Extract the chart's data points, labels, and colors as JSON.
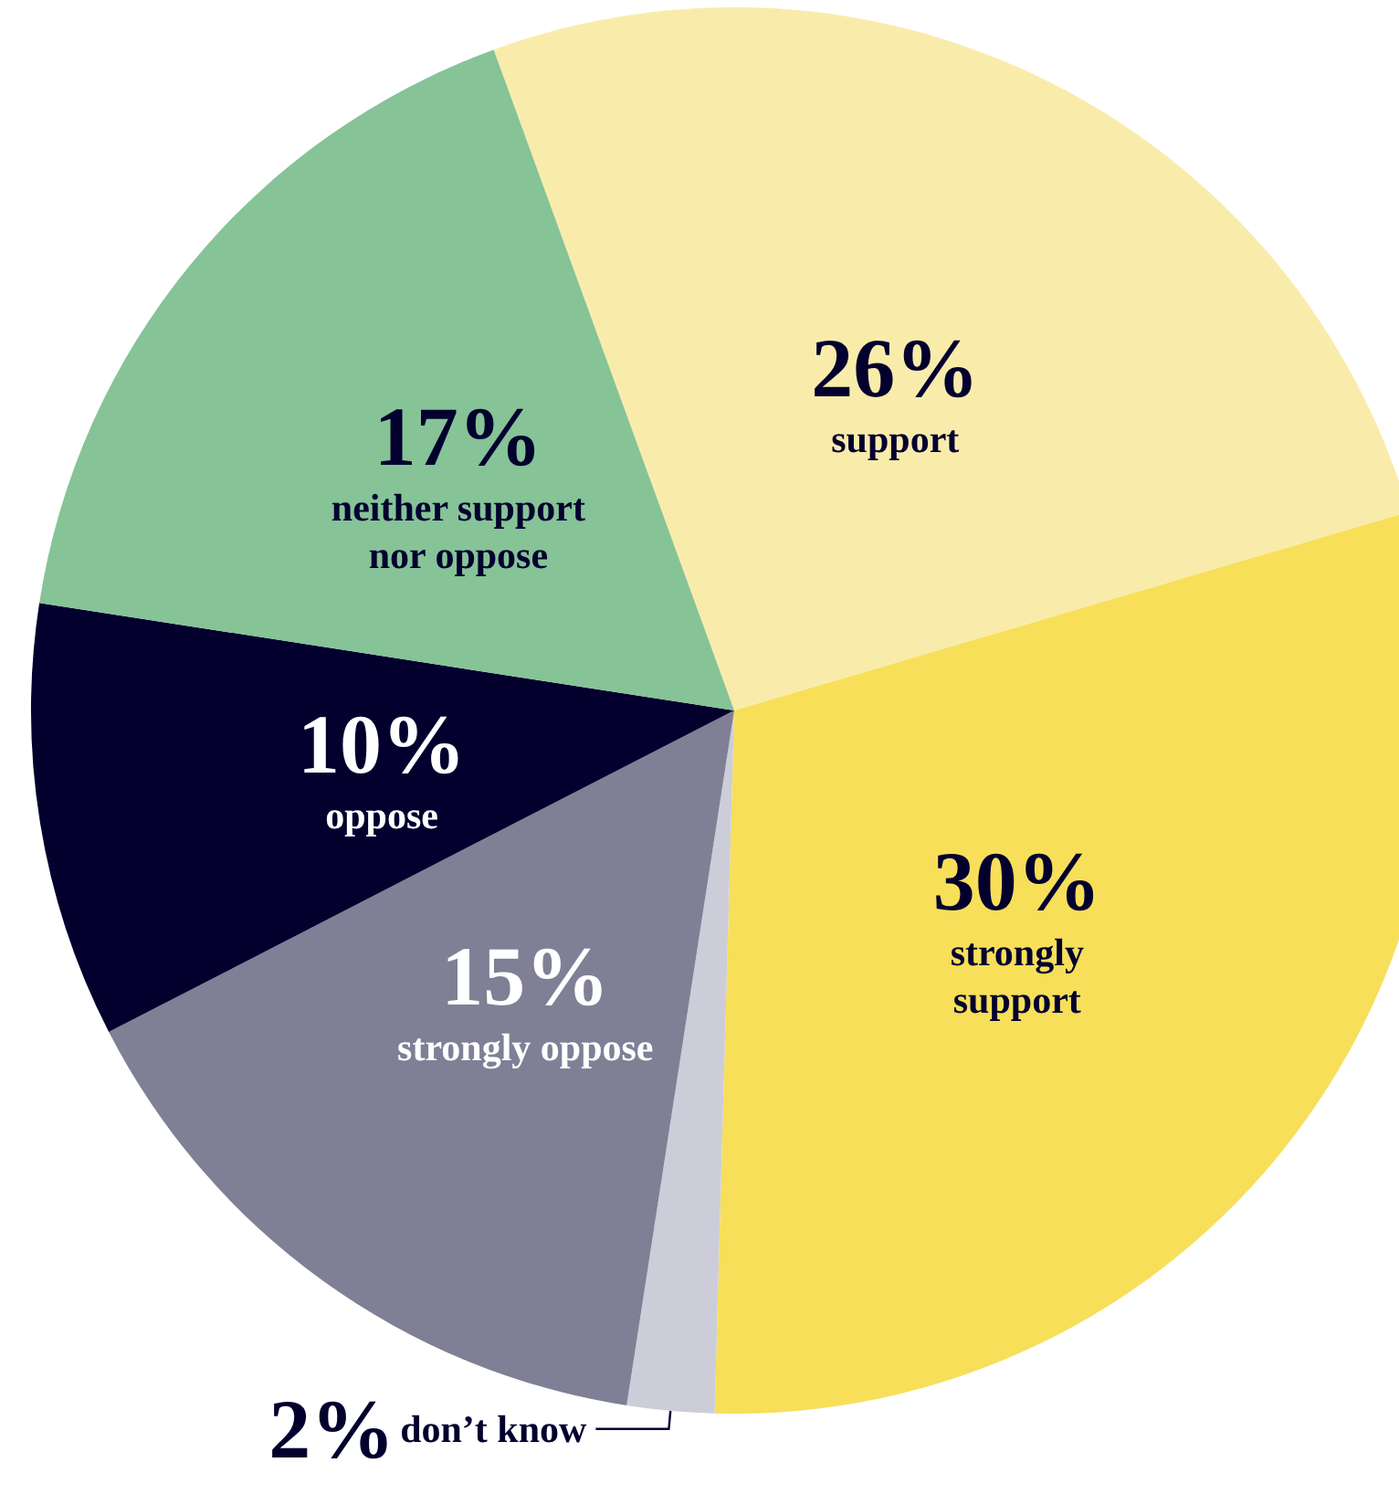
{
  "chart_data": {
    "type": "pie",
    "categories": [
      "support",
      "strongly support",
      "don’t know",
      "strongly oppose",
      "oppose",
      "neither support nor oppose"
    ],
    "values": [
      26,
      30,
      2,
      15,
      10,
      17
    ],
    "value_labels": [
      "26%",
      "30%",
      "2%",
      "15%",
      "10%",
      "17%"
    ],
    "colors": [
      "#f9ecab",
      "#f7df5a",
      "#cdcdd9",
      "#7f7f96",
      "#03002e",
      "#86c397"
    ],
    "legend": false
  }
}
